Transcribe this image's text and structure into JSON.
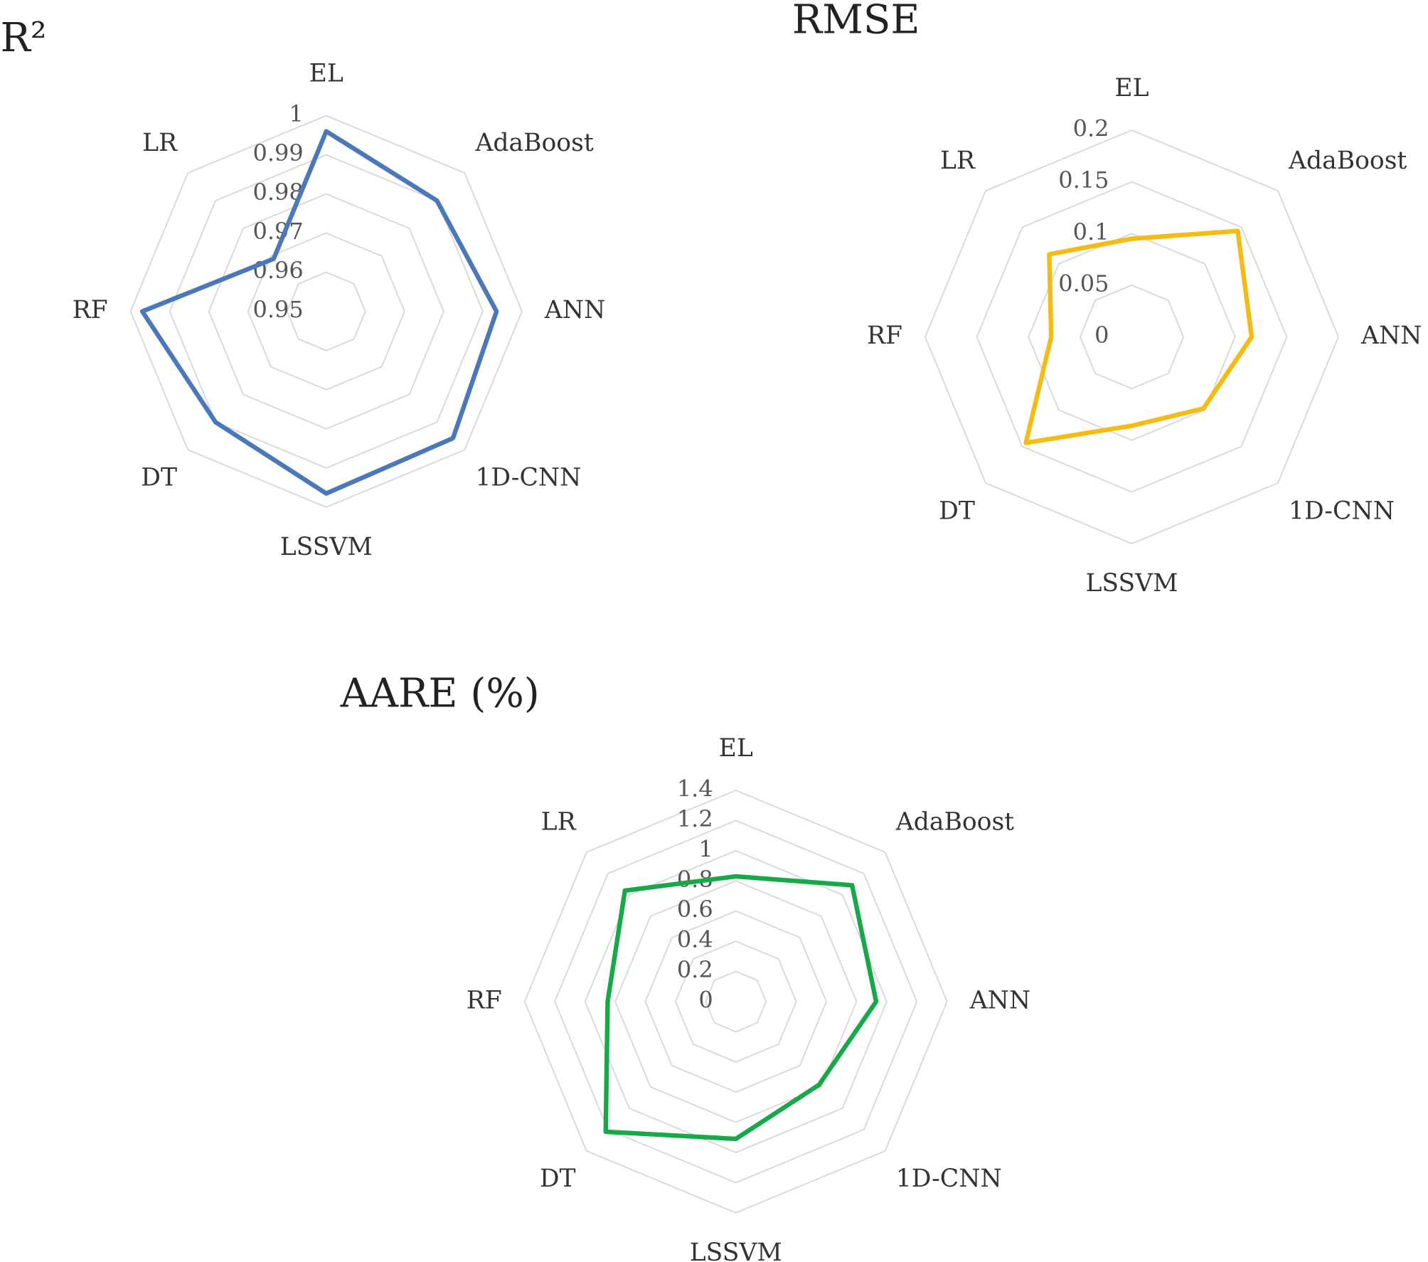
{
  "chart_data": [
    {
      "type": "radar",
      "title": "R²",
      "categories": [
        "EL",
        "AdaBoost",
        "ANN",
        "1D-CNN",
        "LSSVM",
        "DT",
        "RF",
        "LR"
      ],
      "values": [
        0.996,
        0.99,
        0.9935,
        0.9958,
        0.9965,
        0.99,
        0.997,
        0.969
      ],
      "color": "#4a78b8",
      "ylim": [
        0.95,
        1
      ],
      "yticks": [
        0.95,
        0.96,
        0.97,
        0.98,
        0.99,
        1
      ]
    },
    {
      "type": "radar",
      "title": "RMSE",
      "categories": [
        "EL",
        "AdaBoost",
        "ANN",
        "1D-CNN",
        "LSSVM",
        "DT",
        "RF",
        "LR"
      ],
      "values": [
        0.095,
        0.145,
        0.116,
        0.098,
        0.086,
        0.145,
        0.078,
        0.113
      ],
      "color": "#f5bb12",
      "ylim": [
        0,
        0.2
      ],
      "yticks": [
        0,
        0.05,
        0.1,
        0.15,
        0.2
      ]
    },
    {
      "type": "radar",
      "title": "AARE (%)",
      "categories": [
        "EL",
        "AdaBoost",
        "ANN",
        "1D-CNN",
        "LSSVM",
        "DT",
        "RF",
        "LR"
      ],
      "values": [
        0.83,
        1.09,
        0.93,
        0.78,
        0.91,
        1.22,
        0.85,
        1.04
      ],
      "color": "#17a84a",
      "ylim": [
        0,
        1.4
      ],
      "yticks": [
        0,
        0.2,
        0.4,
        0.6,
        0.8,
        1,
        1.2,
        1.4
      ]
    }
  ]
}
